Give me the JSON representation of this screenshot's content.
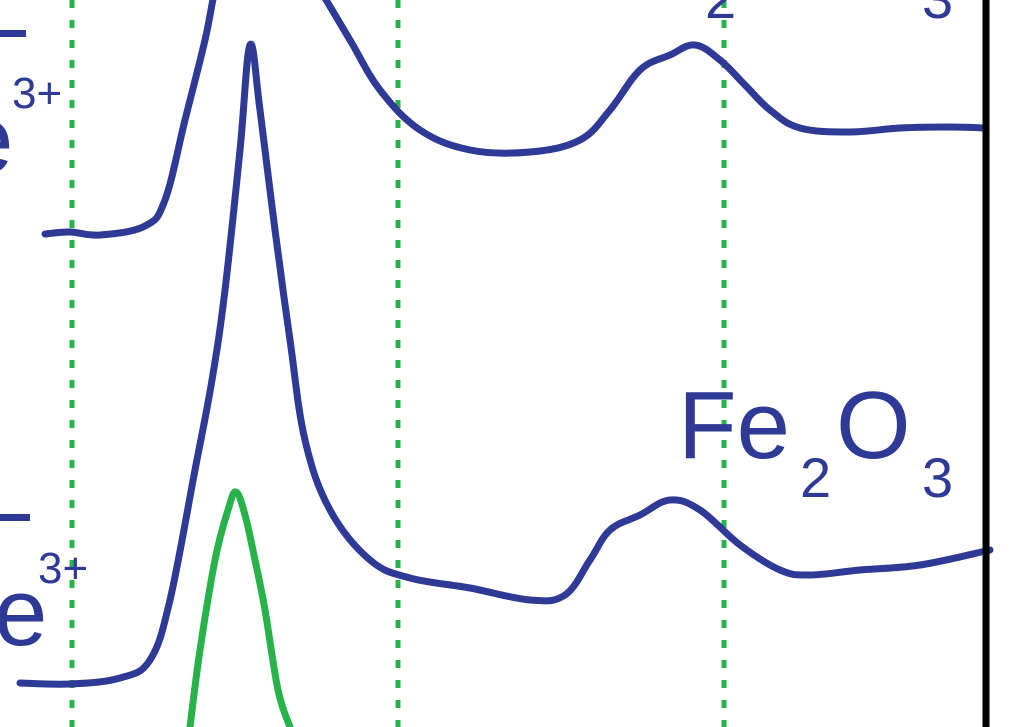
{
  "chart_data": {
    "type": "line",
    "title": "",
    "xlabel": "",
    "ylabel": "",
    "grid": "vertical dotted reference lines",
    "colors": {
      "spectrum": "#2e3a96",
      "reference": "#27b34a",
      "guide": "#27b34a",
      "frame": "#000000"
    },
    "labels": {
      "top_partial": "2",
      "top_partial2": "3",
      "ion_top_sup": "3+",
      "ion_bottom_sup": "3+",
      "ion_bottom_main": "e",
      "compound": {
        "main1": "Fe",
        "sub1": "2",
        "main2": "O",
        "sub2": "3"
      }
    },
    "series": [
      {
        "color": "#2e3a96",
        "x": [
          45,
          70,
          100,
          145,
          165,
          185,
          205,
          215,
          225,
          240,
          255,
          275,
          300,
          320,
          350,
          380,
          420,
          470,
          530,
          580,
          610,
          640,
          670,
          695,
          720,
          745,
          770,
          800,
          850,
          900,
          950,
          985
        ],
        "y": [
          234,
          232,
          235,
          226,
          200,
          120,
          40,
          -10,
          -40,
          -40,
          -40,
          -40,
          -40,
          -10,
          40,
          90,
          130,
          150,
          152,
          140,
          110,
          70,
          55,
          45,
          60,
          85,
          110,
          128,
          132,
          128,
          127,
          128
        ]
      },
      {
        "color": "#2e3a96",
        "x": [
          20,
          70,
          120,
          150,
          170,
          195,
          212,
          225,
          240,
          250,
          260,
          275,
          290,
          305,
          330,
          370,
          410,
          470,
          530,
          565,
          590,
          610,
          640,
          670,
          700,
          740,
          780,
          810,
          860,
          920,
          990
        ],
        "y": [
          683,
          684,
          678,
          660,
          600,
          470,
          380,
          290,
          150,
          45,
          110,
          230,
          340,
          440,
          510,
          560,
          578,
          588,
          600,
          595,
          560,
          530,
          515,
          500,
          510,
          545,
          570,
          575,
          570,
          565,
          550
        ]
      },
      {
        "color": "#27b34a",
        "x": [
          190,
          200,
          215,
          228,
          236,
          245,
          255,
          265,
          278,
          290
        ],
        "y": [
          727,
          650,
          560,
          510,
          492,
          515,
          560,
          610,
          690,
          727
        ]
      }
    ],
    "guides_x": [
      72,
      398,
      724
    ]
  }
}
